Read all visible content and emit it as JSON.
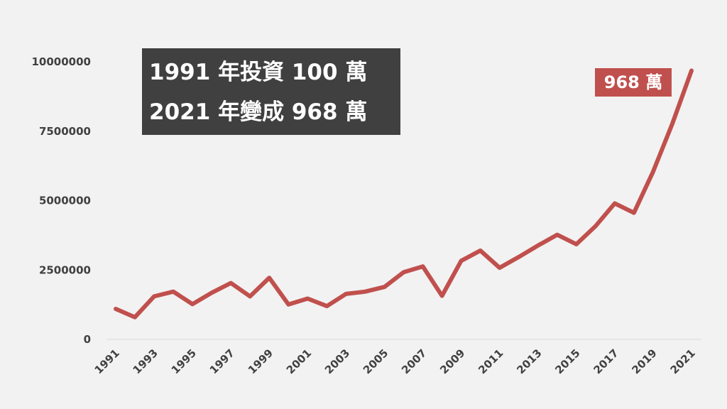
{
  "annotation": {
    "line1": "1991 年投資 100 萬",
    "line2": "2021 年變成 968 萬",
    "end_label": "968 萬"
  },
  "colors": {
    "background": "#f2f2f2",
    "line": "#c0504d",
    "title_box": "#404040",
    "axis_text": "#404040"
  },
  "chart_data": {
    "type": "line",
    "title": "",
    "xlabel": "",
    "ylabel": "",
    "x": [
      1991,
      1992,
      1993,
      1994,
      1995,
      1996,
      1997,
      1998,
      1999,
      2000,
      2001,
      2002,
      2003,
      2004,
      2005,
      2006,
      2007,
      2008,
      2009,
      2010,
      2011,
      2012,
      2013,
      2014,
      2015,
      2016,
      2017,
      2018,
      2019,
      2020,
      2021
    ],
    "x_tick_labels": [
      "1991",
      "1993",
      "1995",
      "1997",
      "1999",
      "2001",
      "2003",
      "2005",
      "2007",
      "2009",
      "2011",
      "2013",
      "2015",
      "2017",
      "2019",
      "2021"
    ],
    "y_tick_labels": [
      "0",
      "2500000",
      "5000000",
      "7500000",
      "10000000"
    ],
    "ylim": [
      0,
      10000000
    ],
    "grid": false,
    "series": [
      {
        "values": [
          1100000,
          800000,
          1550000,
          1720000,
          1270000,
          1680000,
          2030000,
          1550000,
          2220000,
          1260000,
          1470000,
          1200000,
          1640000,
          1720000,
          1890000,
          2420000,
          2630000,
          1570000,
          2830000,
          3200000,
          2580000,
          2970000,
          3380000,
          3770000,
          3430000,
          4080000,
          4900000,
          4560000,
          6040000,
          7770000,
          9680000
        ]
      }
    ]
  }
}
